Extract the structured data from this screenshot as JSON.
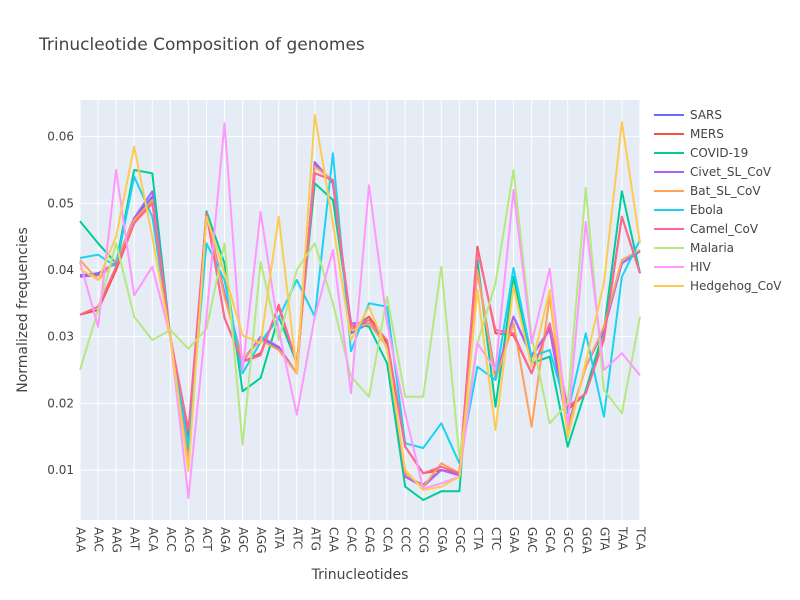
{
  "chart_data": {
    "type": "line",
    "title": "Trinucleotide Composition of genomes",
    "xlabel": "Trinucleotides",
    "ylabel": "Normalized frequencies",
    "ylim": [
      0.0025,
      0.0655
    ],
    "yticks": [
      0.01,
      0.02,
      0.03,
      0.04,
      0.05,
      0.06
    ],
    "ytick_labels": [
      "0.01",
      "0.02",
      "0.03",
      "0.04",
      "0.05",
      "0.06"
    ],
    "categories": [
      "AAA",
      "AAC",
      "AAG",
      "AAT",
      "ACA",
      "ACC",
      "ACG",
      "ACT",
      "AGA",
      "AGC",
      "AGG",
      "ATA",
      "ATC",
      "ATG",
      "CAA",
      "CAC",
      "CAG",
      "CCA",
      "CCC",
      "CCG",
      "CGA",
      "CGC",
      "CTA",
      "CTC",
      "GAA",
      "GAC",
      "GCA",
      "GCC",
      "GGA",
      "GTA",
      "TAA",
      "TCA"
    ],
    "legend_position": "right",
    "series": [
      {
        "name": "SARS",
        "color": "#636efa",
        "values": [
          0.0392,
          0.0395,
          0.041,
          0.0478,
          0.051,
          0.03,
          0.0112,
          0.0482,
          0.0365,
          0.0265,
          0.0298,
          0.0282,
          0.0245,
          0.056,
          0.053,
          0.0305,
          0.032,
          0.029,
          0.009,
          0.0078,
          0.01,
          0.0092,
          0.04,
          0.024,
          0.033,
          0.027,
          0.0312,
          0.0165,
          0.0255,
          0.031,
          0.041,
          0.0428
        ]
      },
      {
        "name": "MERS",
        "color": "#ef553b",
        "values": [
          0.0333,
          0.034,
          0.04,
          0.047,
          0.0505,
          0.03,
          0.015,
          0.0485,
          0.0328,
          0.0262,
          0.0275,
          0.0345,
          0.026,
          0.0545,
          0.0535,
          0.031,
          0.033,
          0.0292,
          0.0135,
          0.0095,
          0.01,
          0.0095,
          0.0435,
          0.0305,
          0.0302,
          0.0245,
          0.0318,
          0.019,
          0.0215,
          0.0298,
          0.048,
          0.0395
        ]
      },
      {
        "name": "COVID-19",
        "color": "#00cc96",
        "values": [
          0.0473,
          0.044,
          0.041,
          0.055,
          0.0545,
          0.03,
          0.013,
          0.0488,
          0.041,
          0.0218,
          0.0238,
          0.033,
          0.026,
          0.053,
          0.0505,
          0.032,
          0.0315,
          0.026,
          0.0075,
          0.0055,
          0.0068,
          0.0068,
          0.0415,
          0.0195,
          0.039,
          0.026,
          0.027,
          0.0135,
          0.022,
          0.031,
          0.0518,
          0.0395
        ]
      },
      {
        "name": "Civet_SL_CoV",
        "color": "#ab63fa",
        "values": [
          0.039,
          0.0392,
          0.0412,
          0.0478,
          0.0518,
          0.03,
          0.011,
          0.0482,
          0.0365,
          0.0262,
          0.03,
          0.0285,
          0.0245,
          0.0562,
          0.053,
          0.032,
          0.032,
          0.0285,
          0.009,
          0.0075,
          0.01,
          0.0092,
          0.0398,
          0.024,
          0.033,
          0.0272,
          0.031,
          0.0165,
          0.0255,
          0.031,
          0.041,
          0.043
        ]
      },
      {
        "name": "Bat_SL_CoV",
        "color": "#ffa15a",
        "values": [
          0.0415,
          0.0385,
          0.0415,
          0.0475,
          0.0505,
          0.03,
          0.011,
          0.0482,
          0.036,
          0.0265,
          0.0295,
          0.028,
          0.0245,
          0.0555,
          0.0535,
          0.031,
          0.032,
          0.0285,
          0.0095,
          0.0075,
          0.011,
          0.0095,
          0.04,
          0.0235,
          0.032,
          0.0165,
          0.036,
          0.016,
          0.0255,
          0.0315,
          0.0415,
          0.043
        ]
      },
      {
        "name": "Ebola",
        "color": "#19d3f3",
        "values": [
          0.0418,
          0.0423,
          0.0405,
          0.054,
          0.048,
          0.03,
          0.0135,
          0.044,
          0.0385,
          0.0245,
          0.0292,
          0.0328,
          0.0385,
          0.033,
          0.0575,
          0.0278,
          0.035,
          0.0345,
          0.014,
          0.0133,
          0.017,
          0.011,
          0.0255,
          0.0235,
          0.0403,
          0.027,
          0.028,
          0.0185,
          0.0305,
          0.018,
          0.039,
          0.0445
        ]
      },
      {
        "name": "Camel_CoV",
        "color": "#ff6692",
        "values": [
          0.0333,
          0.0345,
          0.0405,
          0.047,
          0.05,
          0.03,
          0.016,
          0.0485,
          0.0328,
          0.0262,
          0.0272,
          0.0348,
          0.026,
          0.0545,
          0.0535,
          0.0315,
          0.0325,
          0.0295,
          0.0135,
          0.0095,
          0.0105,
          0.0095,
          0.043,
          0.031,
          0.0305,
          0.0245,
          0.032,
          0.0195,
          0.0215,
          0.0295,
          0.048,
          0.0395
        ]
      },
      {
        "name": "Malaria",
        "color": "#b6e880",
        "values": [
          0.025,
          0.034,
          0.044,
          0.033,
          0.0295,
          0.031,
          0.0282,
          0.0312,
          0.044,
          0.0138,
          0.0412,
          0.0295,
          0.04,
          0.044,
          0.035,
          0.024,
          0.021,
          0.036,
          0.021,
          0.021,
          0.0405,
          0.012,
          0.029,
          0.038,
          0.055,
          0.03,
          0.017,
          0.02,
          0.0523,
          0.022,
          0.0185,
          0.033
        ]
      },
      {
        "name": "HIV",
        "color": "#ff97ff",
        "values": [
          0.0412,
          0.0315,
          0.055,
          0.0362,
          0.0405,
          0.03,
          0.0058,
          0.033,
          0.062,
          0.025,
          0.0487,
          0.031,
          0.0183,
          0.033,
          0.043,
          0.0215,
          0.0527,
          0.032,
          0.0185,
          0.0072,
          0.008,
          0.009,
          0.029,
          0.025,
          0.052,
          0.029,
          0.0402,
          0.0165,
          0.0472,
          0.025,
          0.0275,
          0.0242
        ]
      },
      {
        "name": "Hedgehog_CoV",
        "color": "#fecb52",
        "values": [
          0.0402,
          0.0385,
          0.045,
          0.0585,
          0.045,
          0.03,
          0.0098,
          0.048,
          0.0395,
          0.0302,
          0.029,
          0.048,
          0.0245,
          0.0633,
          0.047,
          0.0295,
          0.0345,
          0.028,
          0.01,
          0.007,
          0.0075,
          0.009,
          0.037,
          0.016,
          0.0375,
          0.0255,
          0.037,
          0.0148,
          0.0262,
          0.038,
          0.0622,
          0.044
        ]
      }
    ]
  }
}
